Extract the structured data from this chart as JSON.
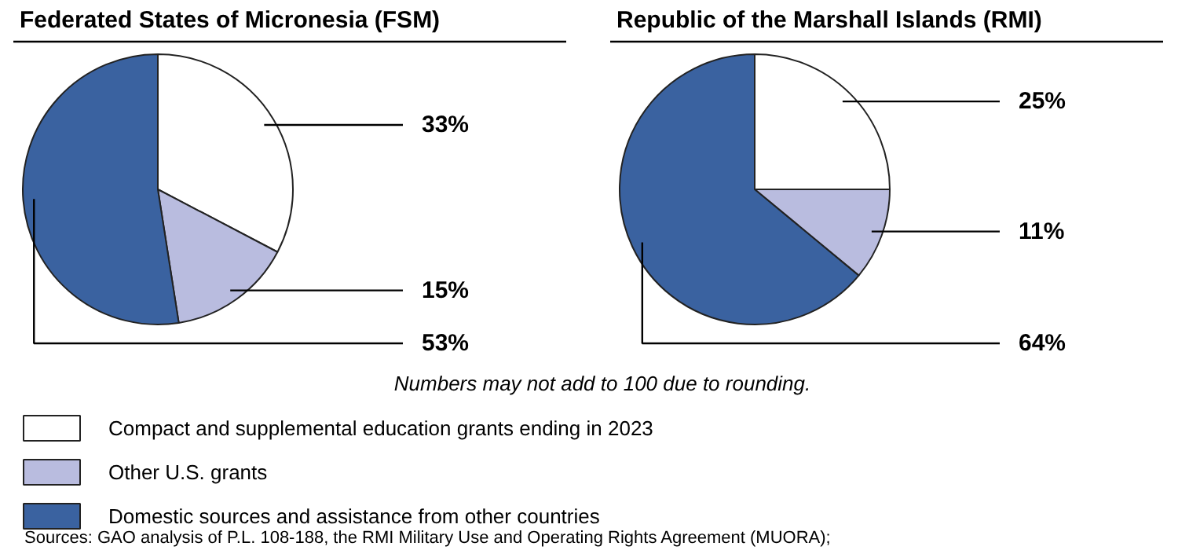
{
  "chart_data": [
    {
      "type": "pie",
      "title": "Federated States of Micronesia (FSM)",
      "categories": [
        "Compact and supplemental education grants ending in 2023",
        "Other U.S. grants",
        "Domestic sources and assistance from other countries"
      ],
      "values": [
        33,
        15,
        53
      ],
      "value_labels": [
        "33%",
        "15%",
        "53%"
      ],
      "colors": [
        "#ffffff",
        "#b9bcdf",
        "#3a62a0"
      ],
      "legend": "bottom",
      "annotations": [
        "Numbers may not add to 100 due to rounding.",
        "Sources: GAO analysis of P.L. 108-188, the RMI Military Use and Operating Rights Agreement (MUORA);"
      ]
    },
    {
      "type": "pie",
      "title": "Republic of the Marshall Islands (RMI)",
      "categories": [
        null,
        null,
        null
      ],
      "values": [
        25,
        11,
        64
      ],
      "value_labels": [
        "25%",
        "11%",
        "64%"
      ],
      "colors": [
        "#ffffff",
        "#b9bcdf",
        "#3a62a0"
      ]
    }
  ]
}
